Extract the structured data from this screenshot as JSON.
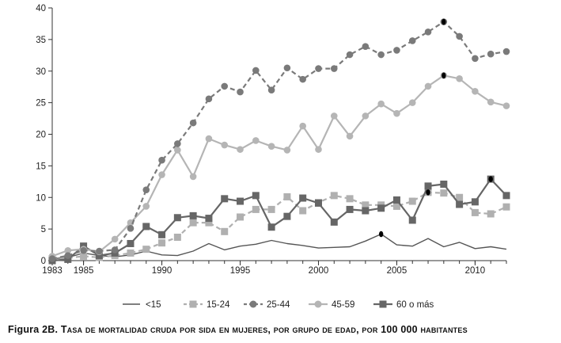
{
  "caption": {
    "label": "Figura 2B.",
    "text": "Tasa de mortalidad cruda por sida en mujeres, por grupo de edad, por 100 000 habitantes"
  },
  "chart_data": {
    "type": "line",
    "title": "",
    "xlabel": "",
    "ylabel": "",
    "xlim": [
      1983,
      2012
    ],
    "ylim": [
      0,
      40
    ],
    "x_ticks": [
      1983,
      1985,
      1990,
      1995,
      2000,
      2005,
      2010
    ],
    "y_ticks": [
      0,
      5,
      10,
      15,
      20,
      25,
      30,
      35,
      40
    ],
    "grid": false,
    "legend_position": "bottom",
    "x": [
      1983,
      1984,
      1985,
      1986,
      1987,
      1988,
      1989,
      1990,
      1991,
      1992,
      1993,
      1994,
      1995,
      1996,
      1997,
      1998,
      1999,
      2000,
      2001,
      2002,
      2003,
      2004,
      2005,
      2006,
      2007,
      2008,
      2009,
      2010,
      2011,
      2012
    ],
    "series": [
      {
        "name": "<15",
        "color": "#555555",
        "line": "solid",
        "marker": "none",
        "values": [
          0.3,
          0.5,
          1.2,
          0.8,
          0.6,
          0.9,
          1.5,
          0.9,
          0.8,
          1.5,
          2.7,
          1.7,
          2.3,
          2.6,
          3.2,
          2.7,
          2.4,
          2.0,
          2.1,
          2.2,
          3.1,
          4.2,
          2.5,
          2.3,
          3.5,
          2.2,
          2.9,
          1.9,
          2.2,
          1.8
        ]
      },
      {
        "name": "15-24",
        "color": "#b0b0b0",
        "line": "dashed",
        "marker": "square",
        "values": [
          0.3,
          0.4,
          0.7,
          0.5,
          0.8,
          1.2,
          1.8,
          2.8,
          3.7,
          6.0,
          6.0,
          4.6,
          6.9,
          8.1,
          8.1,
          10.1,
          7.9,
          9.2,
          10.3,
          9.8,
          8.8,
          8.8,
          8.6,
          9.4,
          10.8,
          10.7,
          10.0,
          7.6,
          7.4,
          8.5
        ]
      },
      {
        "name": "25-44",
        "color": "#7a7a7a",
        "line": "dashed",
        "marker": "circle",
        "values": [
          0.3,
          0.8,
          1.6,
          1.5,
          1.7,
          5.1,
          11.2,
          15.9,
          18.5,
          21.8,
          25.6,
          27.6,
          26.7,
          30.1,
          27.0,
          30.5,
          28.7,
          30.4,
          30.4,
          32.6,
          33.9,
          32.6,
          33.3,
          34.8,
          36.2,
          37.8,
          35.5,
          32.0,
          32.7,
          33.1
        ]
      },
      {
        "name": "45-59",
        "color": "#b5b5b5",
        "line": "solid",
        "marker": "circle",
        "values": [
          0.7,
          1.6,
          1.8,
          1.4,
          3.4,
          6.0,
          8.6,
          13.6,
          17.5,
          13.3,
          19.3,
          18.3,
          17.6,
          19.0,
          18.1,
          17.5,
          21.3,
          17.6,
          22.9,
          19.7,
          22.9,
          24.8,
          23.3,
          25.0,
          27.6,
          29.3,
          28.8,
          26.8,
          25.1,
          24.5
        ]
      },
      {
        "name": "60 o más",
        "color": "#666666",
        "line": "solid",
        "marker": "square",
        "values": [
          0.0,
          0.2,
          2.3,
          0.8,
          1.2,
          2.7,
          5.4,
          4.1,
          6.8,
          7.1,
          6.7,
          9.8,
          9.4,
          10.3,
          5.3,
          7.0,
          9.9,
          9.1,
          6.1,
          8.1,
          7.9,
          8.3,
          9.6,
          6.4,
          11.8,
          12.1,
          8.9,
          9.3,
          12.9,
          10.3
        ]
      }
    ],
    "highlights": [
      {
        "series": "<15",
        "x": 2004
      },
      {
        "series": "15-24",
        "x": 2007
      },
      {
        "series": "25-44",
        "x": 2008
      },
      {
        "series": "45-59",
        "x": 2008
      },
      {
        "series": "60 o más",
        "x": 2011
      }
    ]
  }
}
